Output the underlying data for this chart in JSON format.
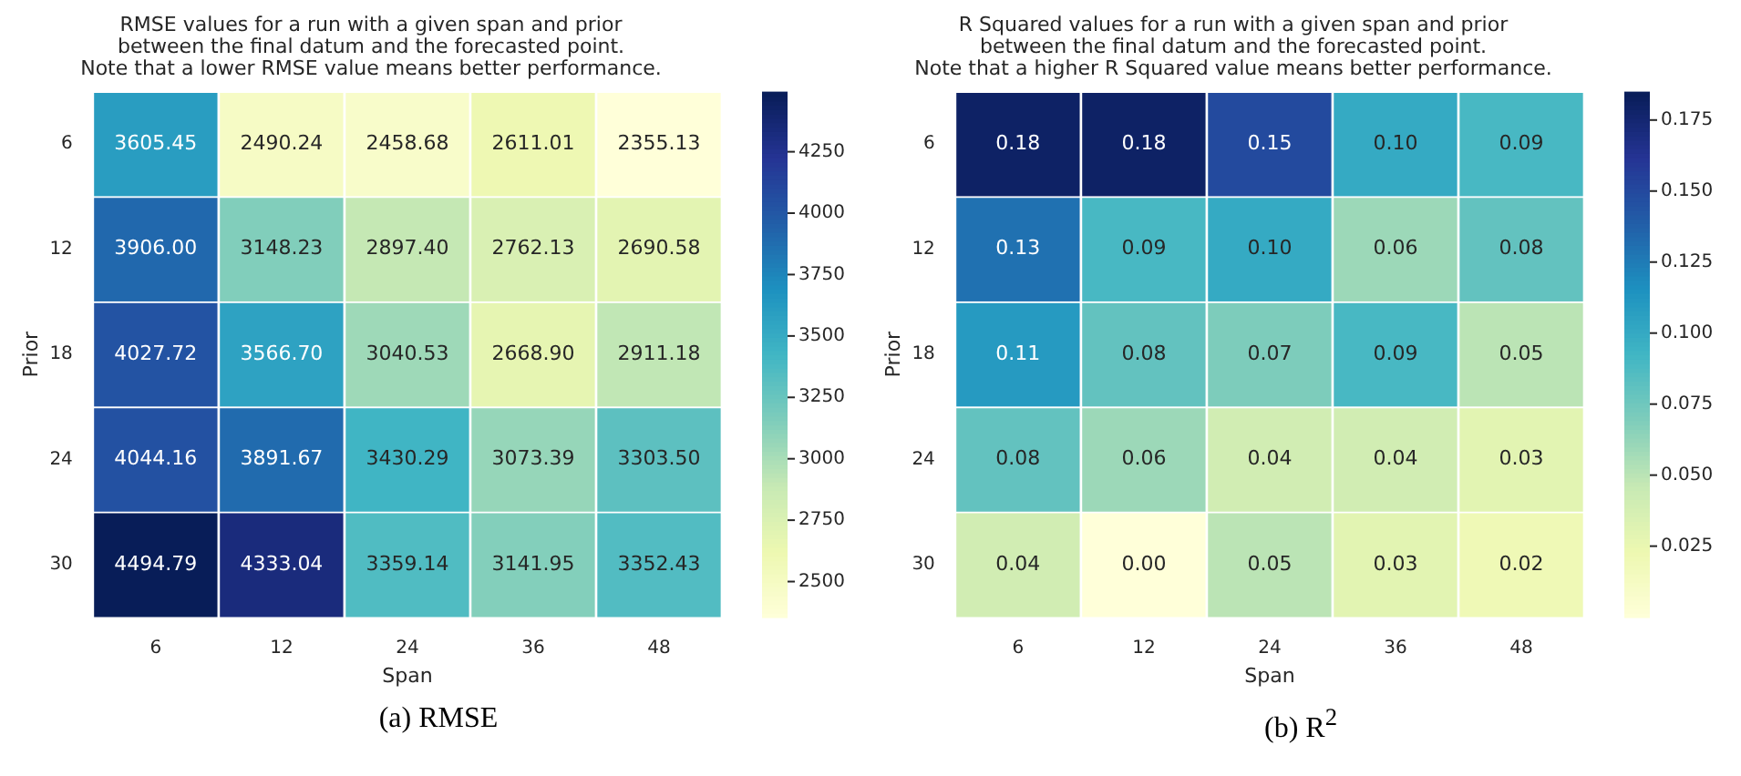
{
  "chart_data": [
    {
      "type": "heatmap",
      "title": "RMSE values for a run with a given span and prior\nbetween the final datum and the forecasted point.\nNote that a lower RMSE value means better performance.",
      "xlabel": "Span",
      "ylabel": "Prior",
      "categories": [
        "6",
        "12",
        "24",
        "36",
        "48"
      ],
      "y_categories": [
        "6",
        "12",
        "18",
        "24",
        "30"
      ],
      "cells": [
        [
          3605.45,
          2490.24,
          2458.68,
          2611.01,
          2355.13
        ],
        [
          3906.0,
          3148.23,
          2897.4,
          2762.13,
          2690.58
        ],
        [
          4027.72,
          3566.7,
          3040.53,
          2668.9,
          2911.18
        ],
        [
          4044.16,
          3891.67,
          3430.29,
          3073.39,
          3303.5
        ],
        [
          4494.79,
          4333.04,
          3359.14,
          3141.95,
          3352.43
        ]
      ],
      "cell_labels": [
        [
          "3605.45",
          "2490.24",
          "2458.68",
          "2611.01",
          "2355.13"
        ],
        [
          "3906.00",
          "3148.23",
          "2897.40",
          "2762.13",
          "2690.58"
        ],
        [
          "4027.72",
          "3566.70",
          "3040.53",
          "2668.90",
          "2911.18"
        ],
        [
          "4044.16",
          "3891.67",
          "3430.29",
          "3073.39",
          "3303.50"
        ],
        [
          "4494.79",
          "4333.04",
          "3359.14",
          "3141.95",
          "3352.43"
        ]
      ],
      "clim": [
        2355.13,
        4494.79
      ],
      "cticks": [
        2500,
        2750,
        3000,
        3250,
        3500,
        3750,
        4000,
        4250
      ],
      "annotations": [
        "(a) RMSE"
      ]
    },
    {
      "type": "heatmap",
      "title": "R Squared values for a run with a given span and prior\nbetween the final datum and the forecasted point.\nNote that a higher R Squared value means better performance.",
      "xlabel": "Span",
      "ylabel": "Prior",
      "categories": [
        "6",
        "12",
        "24",
        "36",
        "48"
      ],
      "y_categories": [
        "6",
        "12",
        "18",
        "24",
        "30"
      ],
      "cells": [
        [
          0.18,
          0.18,
          0.15,
          0.1,
          0.09
        ],
        [
          0.13,
          0.09,
          0.1,
          0.06,
          0.08
        ],
        [
          0.11,
          0.08,
          0.07,
          0.09,
          0.05
        ],
        [
          0.08,
          0.06,
          0.04,
          0.04,
          0.03
        ],
        [
          0.04,
          0.0,
          0.05,
          0.03,
          0.02
        ]
      ],
      "cell_labels": [
        [
          "0.18",
          "0.18",
          "0.15",
          "0.10",
          "0.09"
        ],
        [
          "0.13",
          "0.09",
          "0.10",
          "0.06",
          "0.08"
        ],
        [
          "0.11",
          "0.08",
          "0.07",
          "0.09",
          "0.05"
        ],
        [
          "0.08",
          "0.06",
          "0.04",
          "0.04",
          "0.03"
        ],
        [
          "0.04",
          "0.00",
          "0.05",
          "0.03",
          "0.02"
        ]
      ],
      "clim": [
        0,
        0.185
      ],
      "cticks": [
        {
          "value": 0.025,
          "label": "0.025"
        },
        {
          "value": 0.05,
          "label": "0.050"
        },
        {
          "value": 0.075,
          "label": "0.075"
        },
        {
          "value": 0.1,
          "label": "0.100"
        },
        {
          "value": 0.125,
          "label": "0.125"
        },
        {
          "value": 0.15,
          "label": "0.150"
        },
        {
          "value": 0.175,
          "label": "0.175"
        }
      ],
      "annotations": [
        "(b) R$^{2}$"
      ]
    }
  ]
}
